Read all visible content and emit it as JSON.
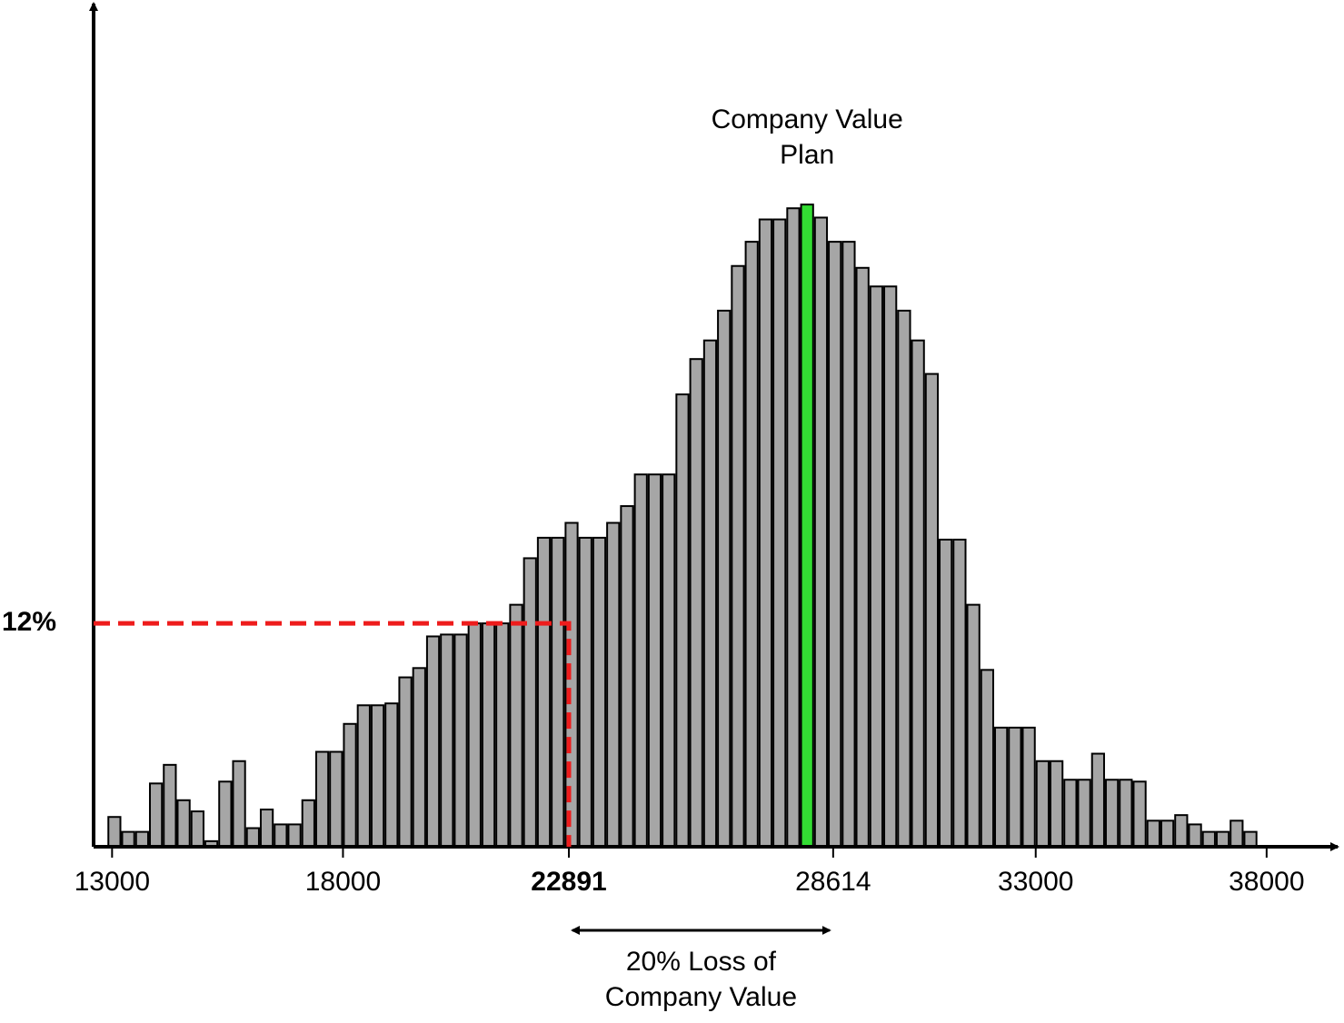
{
  "chart_data": {
    "type": "histogram",
    "bins": [
      12900,
      13200,
      13500,
      13800,
      14100,
      14400,
      14700,
      15000,
      15300,
      15600,
      15900,
      16200,
      16500,
      16800,
      17100,
      17400,
      17700,
      18000,
      18300,
      18600,
      18900,
      19200,
      19500,
      19800,
      20100,
      20400,
      20700,
      21000,
      21300,
      21600,
      21900,
      22200,
      22500,
      22800,
      23100,
      23400,
      23700,
      24000,
      24300,
      24600,
      24900,
      25200,
      25500,
      25800,
      26100,
      26400,
      26700,
      27000,
      27300,
      27600,
      27900,
      28200,
      28500,
      28800,
      29100,
      29400,
      29700,
      30000,
      30300,
      30600,
      30900,
      31200,
      31500,
      31800,
      32100,
      32400,
      32700,
      33000,
      33300,
      33600,
      33900,
      34200,
      34500,
      34800,
      35100,
      35400,
      35700,
      36000,
      36300,
      36600,
      36900,
      37200,
      37500,
      37800
    ],
    "values": [
      1.6,
      0.8,
      0.8,
      3.4,
      4.4,
      2.5,
      1.9,
      0.3,
      3.5,
      4.6,
      1.0,
      2.0,
      1.2,
      1.2,
      2.5,
      5.1,
      5.1,
      6.6,
      7.6,
      7.6,
      7.7,
      9.1,
      9.6,
      11.3,
      11.4,
      11.4,
      12.0,
      12.0,
      12.0,
      13.0,
      15.5,
      16.6,
      16.6,
      17.4,
      16.6,
      16.6,
      17.4,
      18.3,
      20.0,
      20.0,
      20.0,
      24.3,
      26.2,
      27.2,
      28.8,
      31.2,
      32.5,
      33.7,
      33.7,
      34.3,
      34.5,
      33.8,
      32.5,
      32.5,
      31.1,
      30.1,
      30.1,
      28.8,
      27.2,
      25.4,
      16.5,
      16.5,
      13.0,
      9.5,
      6.4,
      6.4,
      6.4,
      4.6,
      4.6,
      3.6,
      3.6,
      5.0,
      3.6,
      3.6,
      3.5,
      1.4,
      1.4,
      1.7,
      1.2,
      0.8,
      0.8,
      1.4,
      0.8
    ],
    "color": "#a6a6a6",
    "highlight": {
      "index": 50,
      "color": "#33dd33"
    },
    "xlim": [
      12600,
      39400
    ],
    "xticks": [
      13000,
      18000,
      22891,
      28614,
      33000,
      38000
    ],
    "ylim": [
      0,
      45
    ],
    "reference": {
      "x": 22891,
      "y": {
        "value": 12,
        "label": "12%"
      },
      "color": "#ee1c1c"
    },
    "annotations": {
      "plan": [
        "Company Value",
        "Plan"
      ],
      "loss": [
        "20% Loss of",
        "Company Value"
      ]
    }
  }
}
